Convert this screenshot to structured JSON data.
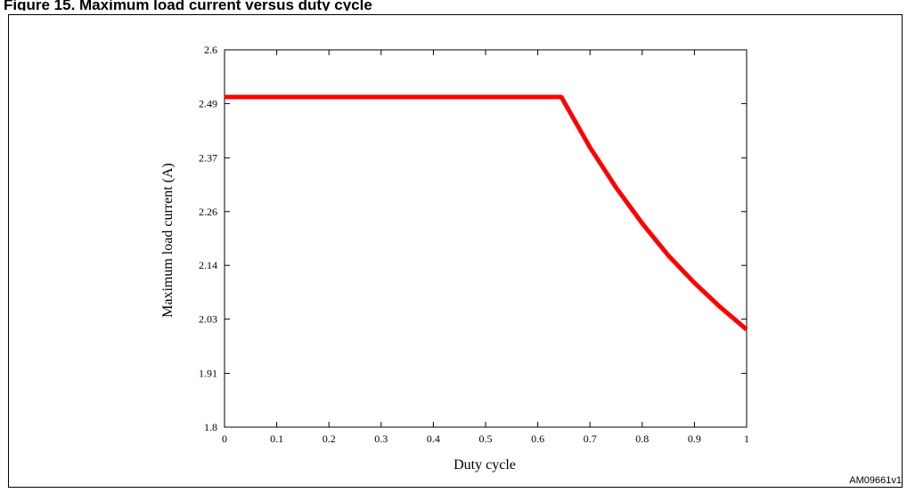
{
  "figure": {
    "title": "Figure 15. Maximum load current versus duty cycle",
    "code": "AM09661v1"
  },
  "chart_data": {
    "type": "line",
    "xlabel": "Duty cycle",
    "ylabel": "Maximum load current (A)",
    "xlim": [
      0,
      1
    ],
    "ylim": [
      1.8,
      2.6
    ],
    "x_ticks": [
      "0",
      "0.1",
      "0.2",
      "0.3",
      "0.4",
      "0.5",
      "0.6",
      "0.7",
      "0.8",
      "0.9",
      "1"
    ],
    "x_tick_values": [
      0,
      0.1,
      0.2,
      0.3,
      0.4,
      0.5,
      0.6,
      0.7,
      0.8,
      0.9,
      1
    ],
    "y_ticks": [
      "1.8",
      "1.91",
      "2.03",
      "2.14",
      "2.26",
      "2.37",
      "2.49",
      "2.6"
    ],
    "y_tick_values": [
      1.8,
      1.914,
      2.029,
      2.143,
      2.257,
      2.371,
      2.486,
      2.6
    ],
    "grid": false,
    "series": [
      {
        "color": "#ff0000",
        "x": [
          0,
          0.1,
          0.2,
          0.3,
          0.4,
          0.5,
          0.6,
          0.645,
          0.7,
          0.75,
          0.8,
          0.85,
          0.9,
          0.95,
          1.0
        ],
        "y": [
          2.5,
          2.5,
          2.5,
          2.5,
          2.5,
          2.5,
          2.5,
          2.5,
          2.393,
          2.308,
          2.232,
          2.164,
          2.106,
          2.054,
          2.007
        ]
      }
    ]
  }
}
